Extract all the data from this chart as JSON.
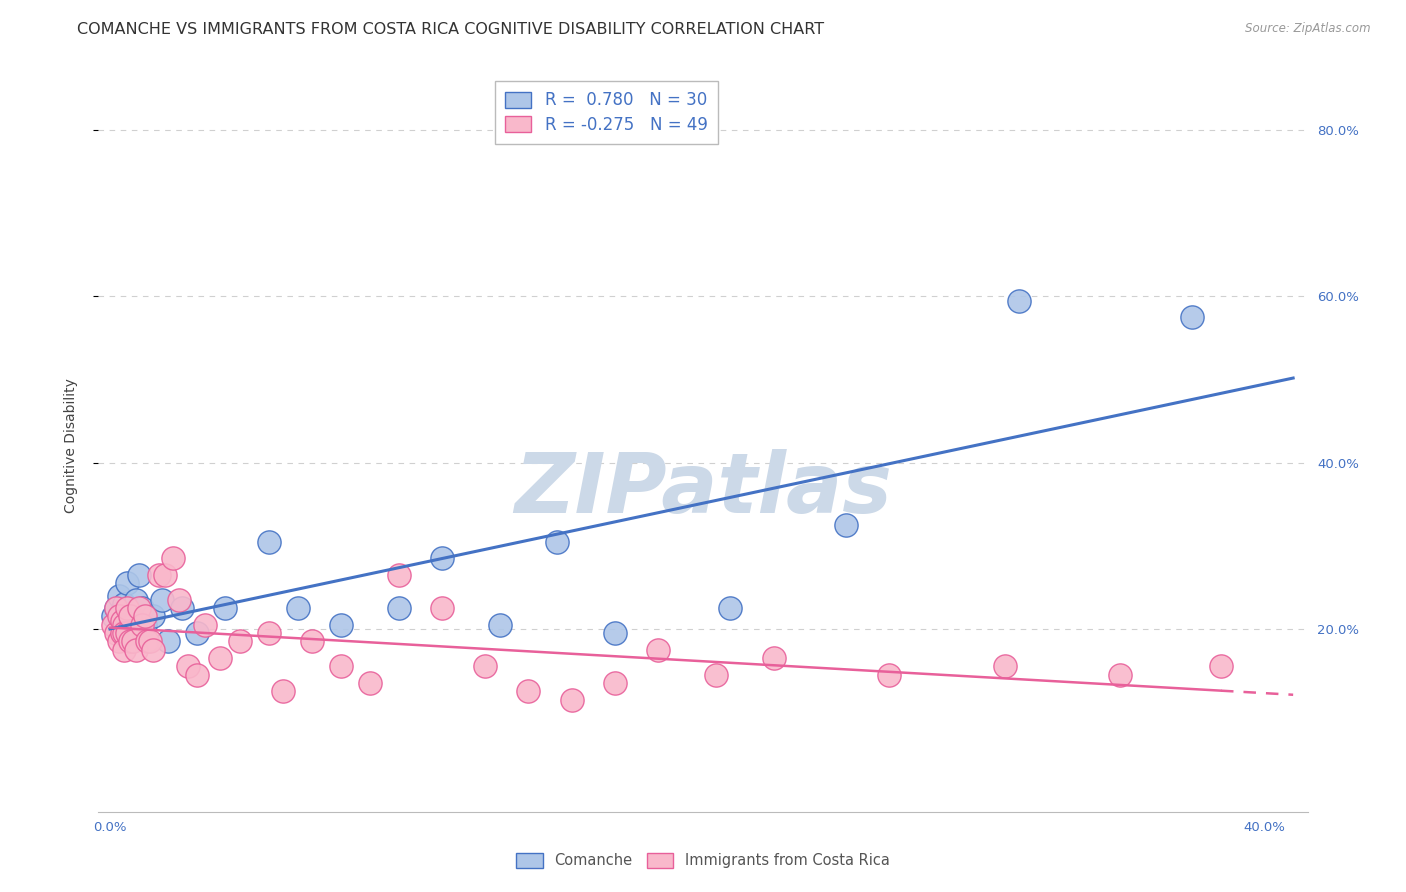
{
  "title": "COMANCHE VS IMMIGRANTS FROM COSTA RICA COGNITIVE DISABILITY CORRELATION CHART",
  "source": "Source: ZipAtlas.com",
  "ylabel": "Cognitive Disability",
  "xlim": [
    -0.004,
    0.415
  ],
  "ylim": [
    -0.02,
    0.86
  ],
  "comanche_R": 0.78,
  "comanche_N": 30,
  "costarica_R": -0.275,
  "costarica_N": 49,
  "comanche_color": "#aec6e8",
  "comanche_line_color": "#4472c4",
  "costarica_color": "#f9b8cb",
  "costarica_line_color": "#e8609a",
  "comanche_x": [
    0.001,
    0.002,
    0.003,
    0.004,
    0.005,
    0.006,
    0.007,
    0.008,
    0.009,
    0.01,
    0.011,
    0.012,
    0.015,
    0.018,
    0.02,
    0.025,
    0.03,
    0.04,
    0.055,
    0.065,
    0.08,
    0.1,
    0.115,
    0.135,
    0.155,
    0.175,
    0.215,
    0.255,
    0.315,
    0.375
  ],
  "comanche_y": [
    0.215,
    0.225,
    0.24,
    0.22,
    0.23,
    0.255,
    0.195,
    0.205,
    0.235,
    0.265,
    0.225,
    0.205,
    0.215,
    0.235,
    0.185,
    0.225,
    0.195,
    0.225,
    0.305,
    0.225,
    0.205,
    0.225,
    0.285,
    0.205,
    0.305,
    0.195,
    0.225,
    0.325,
    0.595,
    0.575
  ],
  "costarica_x": [
    0.001,
    0.002,
    0.002,
    0.003,
    0.003,
    0.004,
    0.004,
    0.005,
    0.005,
    0.005,
    0.006,
    0.006,
    0.007,
    0.007,
    0.008,
    0.009,
    0.01,
    0.011,
    0.012,
    0.013,
    0.014,
    0.015,
    0.017,
    0.019,
    0.022,
    0.024,
    0.027,
    0.03,
    0.033,
    0.038,
    0.045,
    0.055,
    0.06,
    0.07,
    0.08,
    0.09,
    0.1,
    0.115,
    0.13,
    0.145,
    0.16,
    0.175,
    0.19,
    0.21,
    0.23,
    0.27,
    0.31,
    0.35,
    0.385
  ],
  "costarica_y": [
    0.205,
    0.225,
    0.195,
    0.215,
    0.185,
    0.21,
    0.195,
    0.205,
    0.195,
    0.175,
    0.225,
    0.195,
    0.215,
    0.185,
    0.185,
    0.175,
    0.225,
    0.205,
    0.215,
    0.185,
    0.185,
    0.175,
    0.265,
    0.265,
    0.285,
    0.235,
    0.155,
    0.145,
    0.205,
    0.165,
    0.185,
    0.195,
    0.125,
    0.185,
    0.155,
    0.135,
    0.265,
    0.225,
    0.155,
    0.125,
    0.115,
    0.135,
    0.175,
    0.145,
    0.165,
    0.145,
    0.155,
    0.145,
    0.155
  ],
  "background_color": "#ffffff",
  "grid_color": "#d0d0d0",
  "watermark_text": "ZIPatlas",
  "watermark_color": "#ccd9e8",
  "title_fontsize": 11.5,
  "axis_label_fontsize": 10,
  "tick_fontsize": 9.5,
  "legend_fontsize": 12
}
